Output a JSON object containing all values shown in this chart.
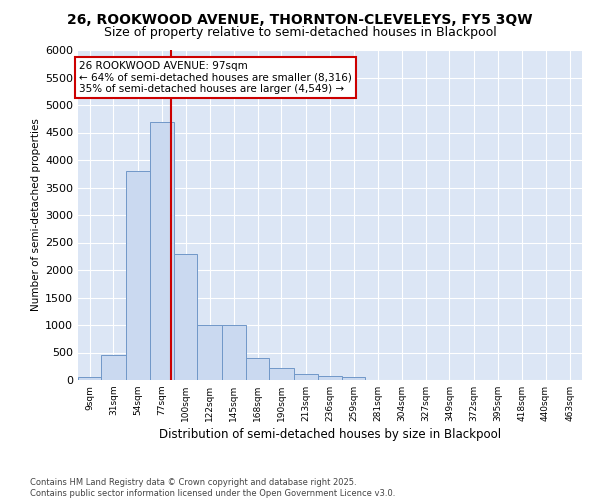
{
  "title": "26, ROOKWOOD AVENUE, THORNTON-CLEVELEYS, FY5 3QW",
  "subtitle": "Size of property relative to semi-detached houses in Blackpool",
  "xlabel": "Distribution of semi-detached houses by size in Blackpool",
  "ylabel": "Number of semi-detached properties",
  "annotation_title": "26 ROOKWOOD AVENUE: 97sqm",
  "annotation_line1": "← 64% of semi-detached houses are smaller (8,316)",
  "annotation_line2": "35% of semi-detached houses are larger (4,549) →",
  "footer_line1": "Contains HM Land Registry data © Crown copyright and database right 2025.",
  "footer_line2": "Contains public sector information licensed under the Open Government Licence v3.0.",
  "property_size": 97,
  "bins": [
    9,
    31,
    54,
    77,
    100,
    122,
    145,
    168,
    190,
    213,
    236,
    259,
    281,
    304,
    327,
    349,
    372,
    395,
    418,
    440,
    463
  ],
  "counts": [
    50,
    450,
    3800,
    4700,
    2300,
    1000,
    1000,
    400,
    220,
    110,
    80,
    50,
    0,
    0,
    0,
    0,
    0,
    0,
    0,
    0,
    0
  ],
  "bar_color": "#cad9f0",
  "bar_edge_color": "#7097c8",
  "vline_color": "#cc0000",
  "annotation_box_edgecolor": "#cc0000",
  "plot_bg_color": "#dce6f5",
  "ylim_max": 6000,
  "ytick_step": 500,
  "title_fontsize": 10,
  "subtitle_fontsize": 9
}
